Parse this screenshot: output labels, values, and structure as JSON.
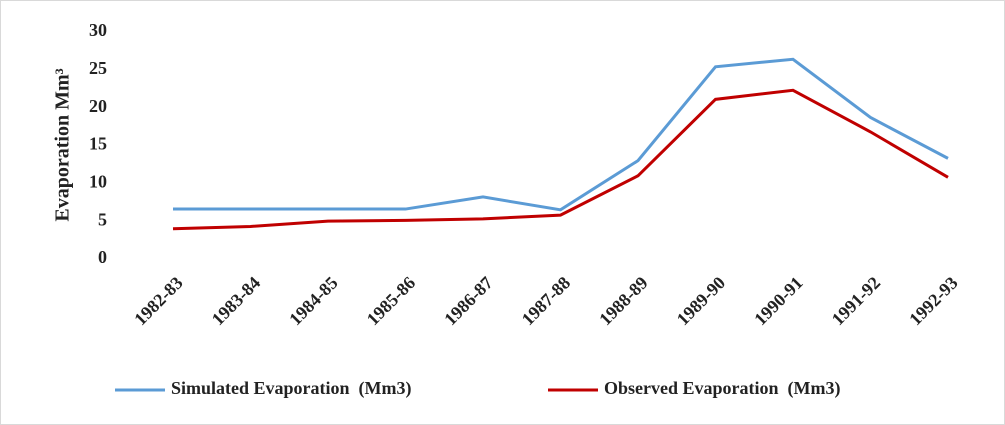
{
  "chart_data": {
    "type": "line",
    "y_label": "Evaporation Mm³",
    "categories": [
      "1982-83",
      "1983-84",
      "1984-85",
      "1985-86",
      "1986-87",
      "1987-88",
      "1988-89",
      "1989-90",
      "1990-91",
      "1991-92",
      "1992-93"
    ],
    "series": [
      {
        "name": "Simulated Evaporation  (Mm3)",
        "color": "#5b9bd5",
        "values": [
          6.6,
          6.6,
          6.6,
          6.6,
          8.2,
          6.5,
          13.0,
          25.4,
          26.4,
          18.7,
          13.3
        ]
      },
      {
        "name": "Observed Evaporation  (Mm3)",
        "color": "#c00000",
        "values": [
          4.0,
          4.3,
          5.0,
          5.1,
          5.3,
          5.8,
          11.0,
          21.1,
          22.3,
          16.8,
          10.8
        ]
      }
    ],
    "ylim": [
      0,
      30
    ],
    "yticks": [
      0,
      5,
      10,
      15,
      20,
      25,
      30
    ],
    "grid": false,
    "legend": "bottom"
  }
}
